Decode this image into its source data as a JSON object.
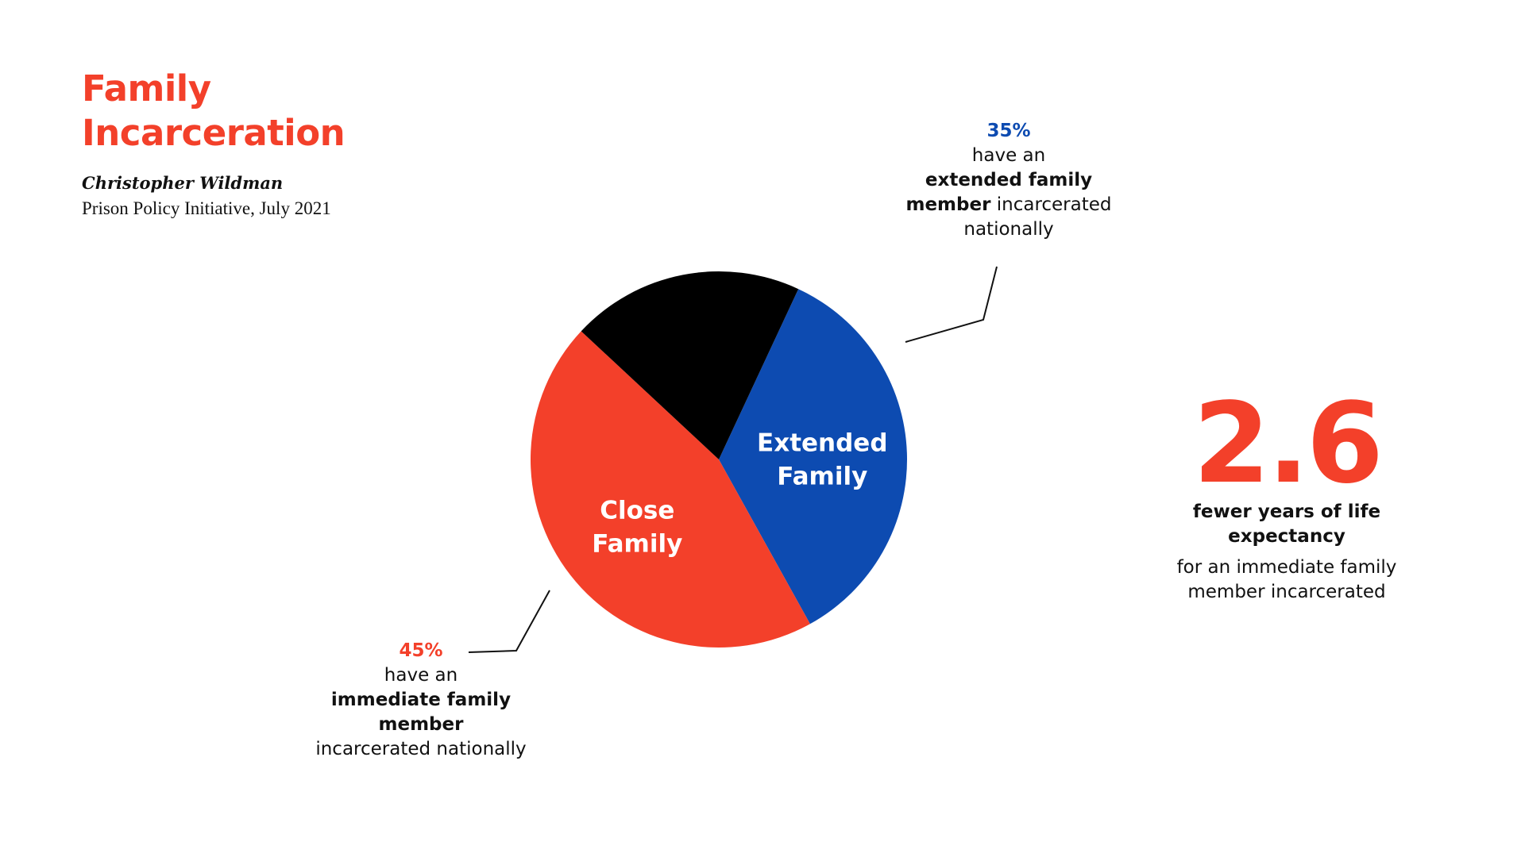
{
  "header": {
    "title_line1": "Family",
    "title_line2": "Incarceration",
    "author": "Christopher Wildman",
    "source": "Prison Policy Initiative, July 2021"
  },
  "chart_data": {
    "type": "pie",
    "slices": [
      {
        "label_line1": "Extended",
        "label_line2": "Family",
        "value": 35,
        "color": "#0d4bb1"
      },
      {
        "label_line1": "Close",
        "label_line2": "Family",
        "value": 45,
        "color": "#f3402a"
      },
      {
        "label_line1": "",
        "label_line2": "",
        "value": 20,
        "color": "#000000"
      }
    ]
  },
  "callouts": {
    "extended": {
      "pct": "35%",
      "line1": "have an",
      "bold": "extended family member",
      "rest": " incarcerated nationally"
    },
    "close": {
      "pct": "45%",
      "line1": "have an",
      "bold": "immediate family member",
      "rest": "incarcerated nationally"
    }
  },
  "stat": {
    "number": "2.6",
    "strong": "fewer years of life expectancy",
    "light": "for an immediate family member incarcerated"
  }
}
